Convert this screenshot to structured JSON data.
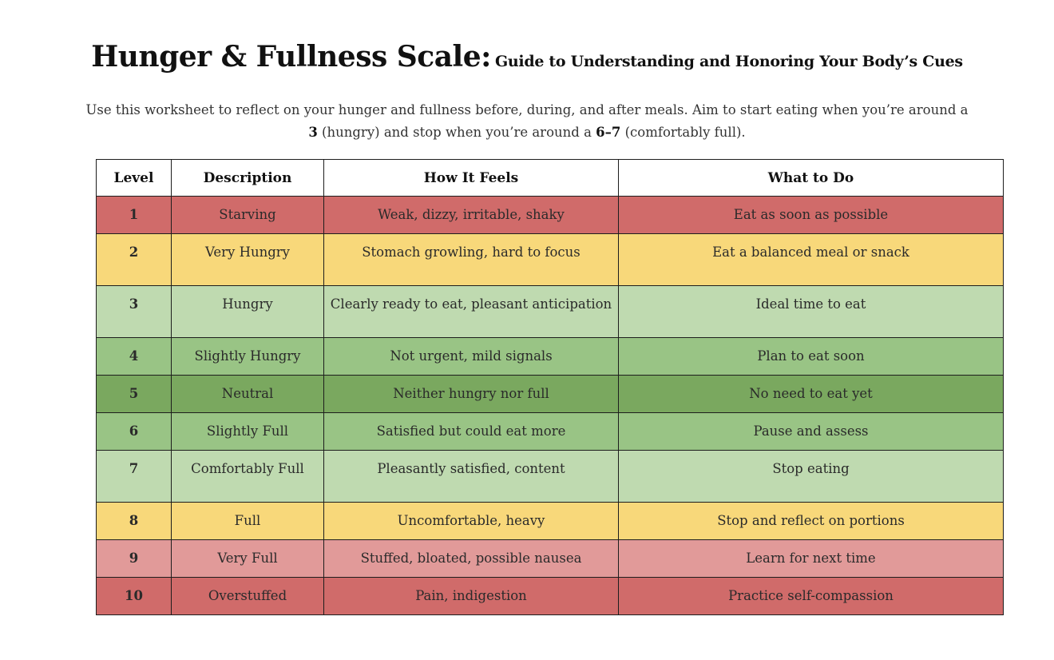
{
  "header": {
    "title": "Hunger & Fullness Scale:",
    "subtitle": "Guide to Understanding and Honoring Your Body’s Cues"
  },
  "intro": {
    "line1": "Use this worksheet to reflect on your hunger and fullness before, during, and after meals. Aim to start eating when you’re around a",
    "start_value": "3",
    "start_text": " (hungry) and stop when you’re around a ",
    "stop_value": "6–7",
    "stop_text": " (comfortably full)."
  },
  "table": {
    "columns": [
      "Level",
      "Description",
      "How It Feels",
      "What to Do"
    ],
    "rows": [
      {
        "level": "1",
        "description": "Starving",
        "feels": "Weak, dizzy, irritable, shaky",
        "todo": "Eat as soon as possible",
        "color": "#d06b6a"
      },
      {
        "level": "2",
        "description": "Very Hungry",
        "feels": "Stomach growling, hard to focus",
        "todo": "Eat a balanced meal or snack",
        "color": "#f8d87a"
      },
      {
        "level": "3",
        "description": "Hungry",
        "feels": "Clearly ready to eat, pleasant anticipation",
        "todo": "Ideal time to eat",
        "color": "#bfdab0"
      },
      {
        "level": "4",
        "description": "Slightly Hungry",
        "feels": "Not urgent, mild signals",
        "todo": "Plan to eat soon",
        "color": "#99c485"
      },
      {
        "level": "5",
        "description": "Neutral",
        "feels": "Neither hungry nor full",
        "todo": "No need to eat yet",
        "color": "#7aa85f"
      },
      {
        "level": "6",
        "description": "Slightly Full",
        "feels": "Satisfied but could eat more",
        "todo": "Pause and assess",
        "color": "#99c485"
      },
      {
        "level": "7",
        "description": "Comfortably Full",
        "feels": "Pleasantly satisfied, content",
        "todo": "Stop eating",
        "color": "#bfdab0"
      },
      {
        "level": "8",
        "description": "Full",
        "feels": "Uncomfortable, heavy",
        "todo": "Stop and reflect on portions",
        "color": "#f8d87a"
      },
      {
        "level": "9",
        "description": "Very Full",
        "feels": "Stuffed, bloated, possible nausea",
        "todo": "Learn for next time",
        "color": "#e19a99"
      },
      {
        "level": "10",
        "description": "Overstuffed",
        "feels": "Pain, indigestion",
        "todo": "Practice self-compassion",
        "color": "#d06b6a"
      }
    ]
  }
}
